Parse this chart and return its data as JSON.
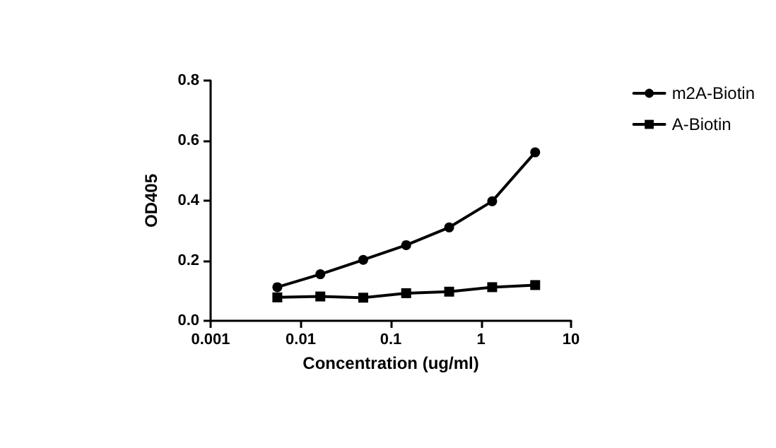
{
  "chart_data": {
    "type": "line",
    "xlabel": "Concentration (ug/ml)",
    "ylabel": "OD405",
    "x": [
      0.0055,
      0.0165,
      0.0494,
      0.148,
      0.444,
      1.333,
      4
    ],
    "series": [
      {
        "name": "m2A-Biotin",
        "color": "#000000",
        "marker": "circle",
        "values": [
          0.112,
          0.155,
          0.203,
          0.252,
          0.311,
          0.398,
          0.561
        ]
      },
      {
        "name": "A-Biotin",
        "color": "#000000",
        "marker": "square",
        "values": [
          0.078,
          0.081,
          0.077,
          0.092,
          0.097,
          0.112,
          0.119
        ]
      }
    ],
    "log": "x",
    "xlim": [
      0.001,
      10
    ],
    "xticks": [
      0.001,
      0.01,
      0.1,
      1,
      10
    ],
    "ylim": [
      0,
      0.8
    ],
    "yticks": [
      {
        "value": 0,
        "label": "0.0"
      },
      0.2,
      0.4,
      0.6,
      0.8
    ],
    "grid": false,
    "legend": "right",
    "line_style": "solid"
  }
}
